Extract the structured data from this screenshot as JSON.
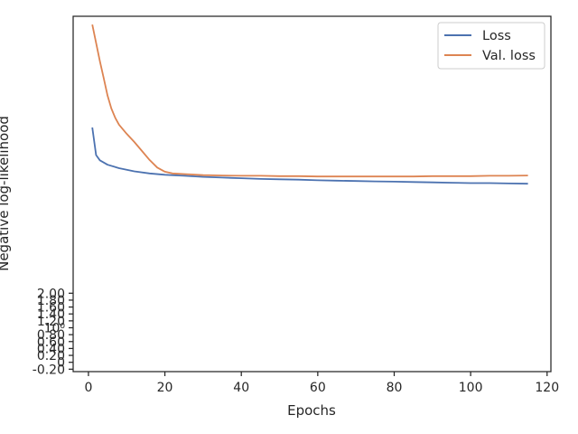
{
  "chart_data": {
    "type": "line",
    "xlabel": "Epochs",
    "ylabel": "Negative log-likelihood",
    "xlim": [
      -4,
      121
    ],
    "ylim": [
      -0.27,
      10.02
    ],
    "x_ticks": [
      0,
      20,
      40,
      60,
      80,
      100,
      120
    ],
    "x_tick_labels": [
      "0",
      "20",
      "40",
      "60",
      "80",
      "100",
      "120"
    ],
    "y_ticks": [
      -0.2,
      0,
      0.2,
      0.4,
      0.6,
      0.8,
      1.0,
      1.2,
      1.4,
      1.6,
      1.8,
      2.0
    ],
    "y_tick_labels": [
      "-0.20",
      "0",
      "0.20",
      "0.40",
      "0.60",
      "0.80",
      "10⁰",
      "1.20",
      "1.40",
      "1.60",
      "1.80",
      "2.00"
    ],
    "grid": false,
    "legend_position": "top-right",
    "series": [
      {
        "name": "Loss",
        "color": "#4c72b0",
        "x": [
          1,
          2,
          3,
          5,
          8,
          12,
          16,
          20,
          25,
          30,
          35,
          40,
          45,
          50,
          55,
          60,
          65,
          70,
          75,
          80,
          85,
          90,
          95,
          100,
          105,
          110,
          115
        ],
        "y": [
          6.8,
          6.0,
          5.85,
          5.72,
          5.62,
          5.53,
          5.47,
          5.43,
          5.4,
          5.37,
          5.35,
          5.33,
          5.31,
          5.3,
          5.29,
          5.27,
          5.26,
          5.25,
          5.24,
          5.23,
          5.22,
          5.21,
          5.2,
          5.19,
          5.19,
          5.18,
          5.17
        ]
      },
      {
        "name": "Val. loss",
        "color": "#dd8452",
        "x": [
          1,
          2,
          3,
          4,
          5,
          6,
          7,
          8,
          10,
          12,
          14,
          16,
          18,
          20,
          22,
          25,
          30,
          35,
          40,
          45,
          50,
          55,
          60,
          65,
          70,
          75,
          80,
          85,
          90,
          95,
          100,
          105,
          110,
          115
        ],
        "y": [
          9.78,
          9.25,
          8.72,
          8.22,
          7.72,
          7.35,
          7.08,
          6.88,
          6.62,
          6.38,
          6.12,
          5.86,
          5.64,
          5.52,
          5.47,
          5.45,
          5.42,
          5.41,
          5.4,
          5.4,
          5.39,
          5.39,
          5.38,
          5.38,
          5.38,
          5.38,
          5.38,
          5.38,
          5.39,
          5.39,
          5.39,
          5.4,
          5.4,
          5.41
        ]
      }
    ]
  }
}
